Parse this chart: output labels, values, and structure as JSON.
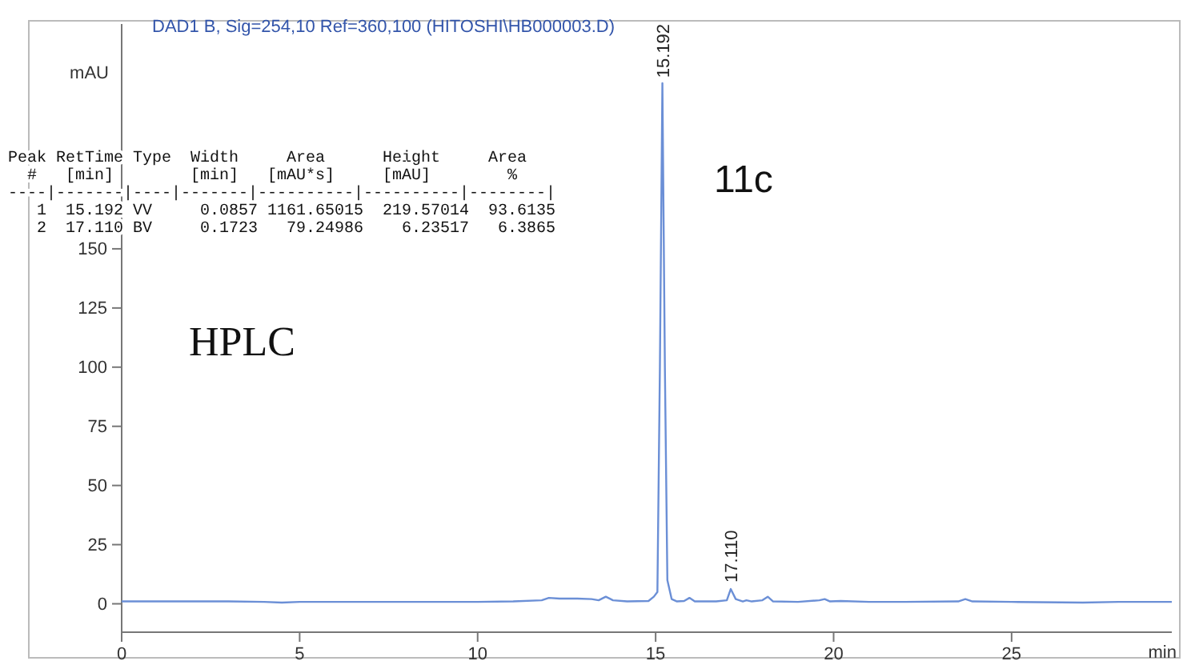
{
  "chart_data": {
    "type": "line",
    "title": "DAD1 B, Sig=254,10 Ref=360,100 (HITOSHI\\HB000003.D)",
    "xlabel": "min",
    "ylabel": "mAU",
    "xlim": [
      0,
      29.5
    ],
    "ylim": [
      -12,
      245
    ],
    "xticks": [
      0,
      5,
      10,
      15,
      20,
      25
    ],
    "yticks": [
      0,
      25,
      50,
      75,
      100,
      125,
      150
    ],
    "grid": false,
    "marker": "none",
    "line_style": "solid",
    "series": [
      {
        "color": "#6b8fd6",
        "x": [
          0,
          1,
          2,
          3,
          4,
          4.5,
          5,
          6,
          7,
          8,
          9,
          10,
          11,
          11.8,
          12,
          12.3,
          12.8,
          13.2,
          13.4,
          13.6,
          13.8,
          14.2,
          14.8,
          14.95,
          15.05,
          15.12,
          15.19,
          15.26,
          15.33,
          15.45,
          15.6,
          15.8,
          15.95,
          16.1,
          16.7,
          17.0,
          17.11,
          17.25,
          17.45,
          17.55,
          17.7,
          18.0,
          18.15,
          18.3,
          19.0,
          19.6,
          19.75,
          19.9,
          20.2,
          21,
          22,
          23.5,
          23.7,
          23.9,
          25,
          27,
          28,
          29.5
        ],
        "values": [
          1,
          1,
          1,
          1,
          0.8,
          0.5,
          0.8,
          0.8,
          0.8,
          0.8,
          0.8,
          0.8,
          1,
          1.5,
          2.5,
          2.2,
          2.2,
          2,
          1.5,
          3,
          1.5,
          1,
          1.2,
          3,
          5,
          100,
          220,
          100,
          10,
          2,
          1,
          1.2,
          2.5,
          1,
          1,
          1.5,
          6.24,
          2,
          1,
          1.5,
          1,
          1.5,
          3,
          1,
          0.8,
          1.5,
          2,
          1,
          1.2,
          0.8,
          0.8,
          1,
          2,
          1,
          0.8,
          0.5,
          0.8,
          0.8
        ]
      }
    ],
    "annotations": [
      {
        "text": "15.192",
        "x": 15.192,
        "y": 219.57
      },
      {
        "text": "17.110",
        "x": 17.11,
        "y": 6.24
      },
      "HPLC",
      "11c",
      "Peak RetTime Type  Width     Area      Height     Area",
      "  #   [min]        [min]   [mAU*s]     [mAU]        %",
      "----|-------|----|-------|----------|----------|--------|",
      "   1  15.192 VV     0.0857 1161.65015  219.57014  93.6135",
      "   2  17.110 BV     0.1723   79.24986    6.23517   6.3865"
    ]
  }
}
